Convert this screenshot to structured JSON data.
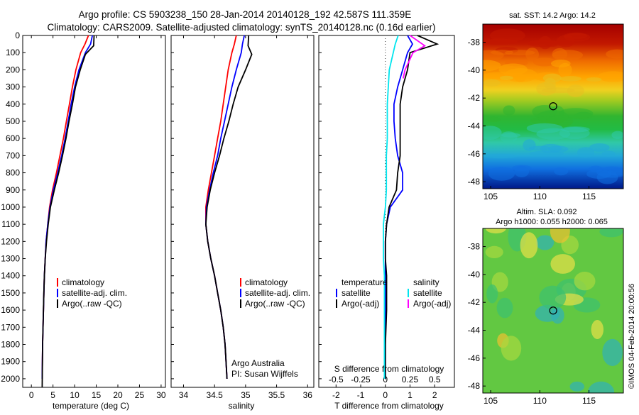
{
  "header": {
    "line1": "Argo profile: CS 5903238_150 28-Jan-2014 20140128_192 42.587S 111.359E",
    "line2": "Climatology: CARS2009. Satellite-adjusted climatology: synTS_20140128.nc (0.16d earlier)"
  },
  "colors": {
    "climatology": "#ff0000",
    "satellite": "#0000ff",
    "argo": "#000000",
    "salinity_satellite": "#00e5ee",
    "salinity_argo": "#ff00ff"
  },
  "footer": {
    "credit_line1": "Argo Australia",
    "credit_line2": "PI: Susan Wijffels",
    "imos_stamp": "©IMOS 04-Feb-2014 20:00:56"
  },
  "chart_data": [
    {
      "type": "line",
      "xlabel": "temperature (deg C)",
      "xlim": [
        -2,
        31
      ],
      "xticks": [
        "0",
        "5",
        "10",
        "15",
        "20",
        "25",
        "30"
      ],
      "ylim": [
        0,
        2050
      ],
      "yticks": [
        "0",
        "100",
        "200",
        "300",
        "400",
        "500",
        "600",
        "700",
        "800",
        "900",
        "1000",
        "1100",
        "1200",
        "1300",
        "1400",
        "1500",
        "1600",
        "1700",
        "1800",
        "1900",
        "2000"
      ],
      "legend": [
        "climatology",
        "satellite-adj. clim.",
        "Argo(..raw -QC)"
      ],
      "series": [
        {
          "name": "climatology",
          "x": [
            13.2,
            12.4,
            11.4,
            10.3,
            9.5,
            8.8,
            8.1,
            7.4,
            6.6,
            5.8,
            4.9,
            4.2,
            3.8,
            3.4,
            3.2,
            3.0,
            2.9,
            2.8,
            2.7,
            2.6,
            2.5
          ],
          "y": [
            0,
            50,
            100,
            200,
            300,
            400,
            500,
            600,
            700,
            800,
            900,
            1000,
            1100,
            1200,
            1300,
            1400,
            1500,
            1600,
            1700,
            1800,
            2000
          ]
        },
        {
          "name": "satellite-adj. clim.",
          "x": [
            14.1,
            13.7,
            12.5,
            11.0,
            10.0,
            9.2,
            8.5,
            7.8,
            7.0,
            6.1,
            5.1,
            4.3,
            3.8,
            3.4,
            3.2,
            3.0,
            2.9,
            2.8,
            2.7,
            2.6,
            2.5
          ],
          "y": [
            0,
            50,
            100,
            200,
            300,
            400,
            500,
            600,
            700,
            800,
            900,
            1000,
            1100,
            1200,
            1300,
            1400,
            1500,
            1600,
            1700,
            1800,
            2000
          ]
        },
        {
          "name": "Argo(..raw -QC)",
          "x": [
            14.5,
            14.4,
            12.5,
            11.3,
            10.2,
            9.5,
            8.7,
            8.0,
            7.2,
            6.3,
            5.3,
            4.4,
            3.9,
            3.5,
            3.2,
            3.0,
            2.9,
            2.8,
            2.7,
            2.6,
            2.5
          ],
          "y": [
            0,
            60,
            110,
            200,
            300,
            400,
            500,
            600,
            700,
            800,
            900,
            1000,
            1100,
            1200,
            1300,
            1400,
            1500,
            1600,
            1700,
            1800,
            2050
          ]
        }
      ]
    },
    {
      "type": "line",
      "xlabel": "salinity",
      "xlim": [
        33.8,
        36.1
      ],
      "xticks": [
        "34",
        "34.5",
        "35",
        "35.5",
        "36"
      ],
      "ylim": [
        0,
        2050
      ],
      "legend": [
        "climatology",
        "satellite-adj. clim.",
        "Argo(..raw -QC)"
      ],
      "series": [
        {
          "name": "climatology",
          "x": [
            34.85,
            34.82,
            34.78,
            34.72,
            34.68,
            34.64,
            34.6,
            34.55,
            34.5,
            34.45,
            34.4,
            34.36,
            34.36,
            34.39,
            34.44,
            34.5,
            34.55,
            34.6,
            34.64,
            34.67,
            34.7
          ],
          "y": [
            0,
            50,
            100,
            200,
            300,
            400,
            500,
            600,
            700,
            800,
            900,
            1000,
            1100,
            1200,
            1300,
            1400,
            1500,
            1600,
            1700,
            1800,
            2000
          ]
        },
        {
          "name": "satellite-adj. clim.",
          "x": [
            34.98,
            34.95,
            34.93,
            34.85,
            34.78,
            34.72,
            34.66,
            34.6,
            34.55,
            34.48,
            34.42,
            34.37,
            34.36,
            34.39,
            34.44,
            34.5,
            34.55,
            34.6,
            34.64,
            34.67,
            34.7
          ],
          "y": [
            0,
            50,
            100,
            200,
            300,
            400,
            500,
            600,
            700,
            800,
            900,
            1000,
            1100,
            1200,
            1300,
            1400,
            1500,
            1600,
            1700,
            1800,
            2000
          ]
        },
        {
          "name": "Argo(..raw -QC)",
          "x": [
            35.05,
            35.04,
            35.1,
            35.0,
            34.88,
            34.8,
            34.73,
            34.65,
            34.58,
            34.5,
            34.43,
            34.38,
            34.36,
            34.39,
            34.44,
            34.5,
            34.55,
            34.6,
            34.64,
            34.67,
            34.7
          ],
          "y": [
            0,
            60,
            110,
            200,
            300,
            400,
            500,
            600,
            700,
            800,
            900,
            1000,
            1100,
            1200,
            1300,
            1400,
            1500,
            1600,
            1700,
            1800,
            2000
          ]
        }
      ],
      "annotation": [
        "Argo Australia",
        "PI: Susan Wijffels"
      ]
    },
    {
      "type": "line",
      "xlabel": "T difference from climatology",
      "top_axis_label": "S difference from climatology",
      "xlim": [
        -2.7,
        2.8
      ],
      "xticks": [
        "-2",
        "-1",
        "0",
        "1",
        "2"
      ],
      "top_ticks": [
        "-0.5",
        "-0.25",
        "0",
        "0.25",
        "0.5"
      ],
      "ylim": [
        0,
        2050
      ],
      "legend_groups": [
        {
          "heading": "temperature",
          "entries": [
            "satellite",
            "Argo(-adj)"
          ]
        },
        {
          "heading": "salinity",
          "entries": [
            "satellite",
            "Argo(-adj)"
          ]
        }
      ],
      "series": [
        {
          "name": "temperature satellite",
          "x": [
            0.9,
            1.1,
            0.9,
            0.7,
            0.5,
            0.35,
            0.35,
            0.4,
            0.5,
            0.7,
            0.7,
            0.2,
            0.05,
            0,
            0,
            0,
            0,
            0,
            0,
            0
          ],
          "y": [
            0,
            50,
            100,
            200,
            300,
            400,
            500,
            600,
            700,
            800,
            900,
            1000,
            1100,
            1200,
            1300,
            1400,
            1500,
            1600,
            1800,
            2000
          ]
        },
        {
          "name": "temperature Argo(-adj)",
          "x": [
            1.3,
            2.1,
            1.0,
            0.9,
            0.7,
            0.6,
            0.6,
            0.6,
            0.6,
            0.5,
            0.45,
            0.15,
            0.05,
            0,
            0,
            0.05,
            0.05,
            0.05,
            0,
            0
          ],
          "y": [
            0,
            50,
            100,
            200,
            300,
            400,
            500,
            600,
            700,
            800,
            900,
            1000,
            1100,
            1200,
            1300,
            1400,
            1500,
            1600,
            1800,
            2000
          ]
        },
        {
          "name": "salinity satellite",
          "x": [
            0.13,
            0.1,
            0.08,
            0.04,
            0.03,
            0.02,
            0.02,
            0.02,
            0.01,
            0.01,
            0.01,
            0.0,
            -0.02,
            -0.02,
            -0.02,
            -0.01,
            -0.01,
            -0.01,
            -0.01,
            -0.01
          ],
          "y": [
            0,
            50,
            100,
            200,
            300,
            400,
            500,
            600,
            700,
            800,
            900,
            1000,
            1100,
            1200,
            1300,
            1400,
            1500,
            1600,
            1800,
            2000
          ]
        },
        {
          "name": "salinity Argo(-adj)",
          "x": [
            0.25,
            0.4,
            0.28,
            0.2,
            0.18
          ],
          "y": [
            0,
            60,
            100,
            200,
            250
          ]
        }
      ]
    },
    {
      "type": "heatmap",
      "title": "sat. SST: 14.2 Argo: 14.2",
      "xticks": [
        "105",
        "110",
        "115"
      ],
      "yticks": [
        "-38",
        "-40",
        "-42",
        "-44",
        "-46",
        "-48"
      ],
      "xlim": [
        104.2,
        118.5
      ],
      "ylim": [
        -48.5,
        -36.7
      ],
      "marker": {
        "lon": 111.359,
        "lat": -42.587
      }
    },
    {
      "type": "heatmap",
      "title": "Altim. SLA: 0.092",
      "subtitle": "Argo h1000: 0.055 h2000: 0.065",
      "xticks": [
        "105",
        "110",
        "115"
      ],
      "yticks": [
        "-38",
        "-40",
        "-42",
        "-44",
        "-46",
        "-48"
      ],
      "xlim": [
        104.2,
        118.5
      ],
      "ylim": [
        -48.5,
        -36.7
      ],
      "marker": {
        "lon": 111.359,
        "lat": -42.587
      }
    }
  ]
}
